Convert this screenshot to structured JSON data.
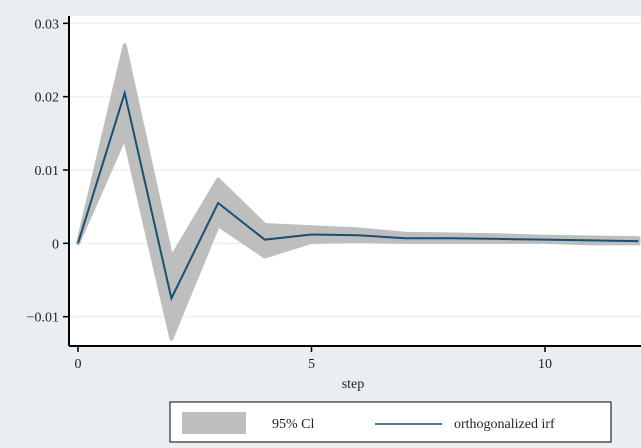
{
  "chart_data": {
    "type": "line",
    "title": "",
    "xlabel": "step",
    "ylabel": "",
    "xlim": [
      0,
      12
    ],
    "ylim": [
      -0.014,
      0.031
    ],
    "x_ticks": [
      0,
      5,
      10
    ],
    "x_tick_labels": [
      "0",
      "5",
      "10"
    ],
    "y_ticks": [
      -0.01,
      0,
      0.01,
      0.02,
      0.03
    ],
    "y_tick_labels": [
      "−0.01",
      "0",
      "0.01",
      "0.02",
      "0.03"
    ],
    "grid": true,
    "legend_position": "bottom",
    "x": [
      0,
      1,
      2,
      3,
      4,
      5,
      6,
      7,
      8,
      9,
      10,
      11,
      12
    ],
    "series": [
      {
        "name": "orthogonalized irf",
        "kind": "line",
        "color": "#1a4f72",
        "values": [
          0,
          0.0205,
          -0.0075,
          0.0055,
          0.0005,
          0.0012,
          0.0011,
          0.0007,
          0.0007,
          0.0006,
          0.0005,
          0.0004,
          0.0003
        ]
      },
      {
        "name": "95% Cl",
        "kind": "band",
        "color": "#bebebe",
        "lower": [
          0,
          0.0145,
          -0.013,
          0.0025,
          -0.0018,
          0.0002,
          0.0003,
          0.0002,
          0.0002,
          0.0002,
          0.0002,
          0.0,
          0.0
        ],
        "upper": [
          0,
          0.027,
          -0.002,
          0.0087,
          0.0025,
          0.0022,
          0.0019,
          0.0013,
          0.0012,
          0.0011,
          0.0009,
          0.0008,
          0.0007
        ]
      }
    ]
  },
  "colors": {
    "page_background": "#e8eef1",
    "plot_background": "#ffffff",
    "grid": "#eaf2f3",
    "axis": "#000000"
  }
}
